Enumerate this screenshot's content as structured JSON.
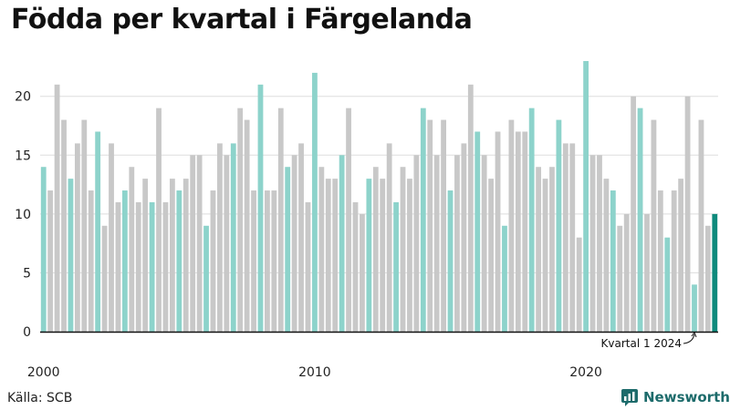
{
  "title": "Födda per kvartal i Färgelanda",
  "source": "Källa: SCB",
  "brand": {
    "name": "Newsworthy",
    "icon": "newsworthy-logo-icon"
  },
  "colors": {
    "grid": "#dddddd",
    "other": "#c8c8c8",
    "q1": "#8dd3cb",
    "latest": "#0e8a7c",
    "axis": "#111111"
  },
  "chart_data": {
    "type": "bar",
    "x_start_year": 2000,
    "x_start_quarter": 1,
    "xlabel": "",
    "ylabel": "",
    "ylim": [
      0,
      23
    ],
    "yticks": [
      0,
      5,
      10,
      15,
      20
    ],
    "xtick_labels": [
      "2000",
      "2010",
      "2020"
    ],
    "grid": true,
    "highlight": "first quarter of each year",
    "annotation": "Kvartal 1 2024",
    "values": [
      14,
      12,
      21,
      18,
      13,
      16,
      18,
      12,
      17,
      9,
      16,
      11,
      12,
      14,
      11,
      13,
      11,
      19,
      11,
      13,
      12,
      13,
      15,
      15,
      9,
      12,
      16,
      15,
      16,
      19,
      18,
      12,
      21,
      12,
      12,
      19,
      14,
      15,
      16,
      11,
      22,
      14,
      13,
      13,
      15,
      19,
      11,
      10,
      13,
      14,
      13,
      16,
      11,
      14,
      13,
      15,
      19,
      18,
      15,
      18,
      12,
      15,
      16,
      21,
      17,
      15,
      13,
      17,
      9,
      18,
      17,
      17,
      19,
      14,
      13,
      14,
      18,
      16,
      16,
      8,
      23,
      15,
      15,
      13,
      12,
      9,
      10,
      20,
      19,
      10,
      18,
      12,
      8,
      12,
      13,
      20,
      4,
      18,
      9,
      10
    ]
  }
}
